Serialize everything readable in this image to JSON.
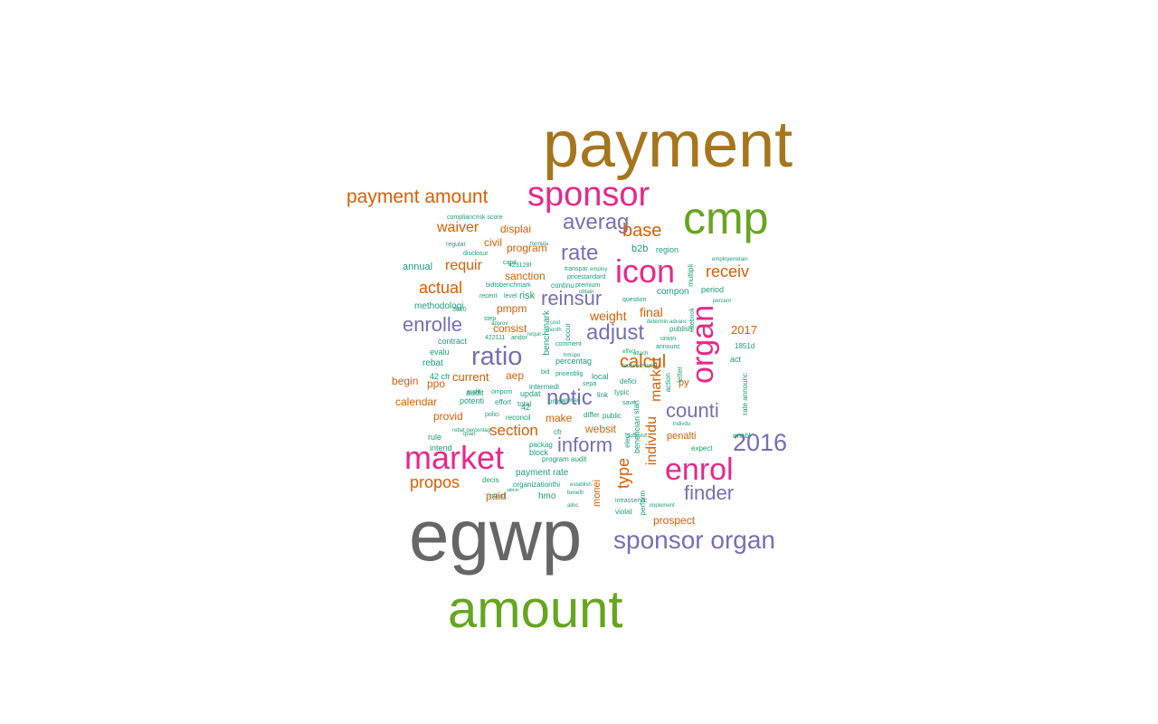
{
  "palette": {
    "gold": "#A6761D",
    "grey": "#666666",
    "green": "#66A61E",
    "pink": "#E7298A",
    "purple": "#7570B3",
    "orange": "#D95F02",
    "teal": "#1B9E77"
  },
  "words": [
    {
      "text": "payment",
      "color": "gold"
    },
    {
      "text": "egwp",
      "color": "grey"
    },
    {
      "text": "amount",
      "color": "green"
    },
    {
      "text": "cmp",
      "color": "green"
    },
    {
      "text": "sponsor",
      "color": "pink"
    },
    {
      "text": "icon",
      "color": "pink"
    },
    {
      "text": "organ",
      "color": "pink"
    },
    {
      "text": "market",
      "color": "pink"
    },
    {
      "text": "enrol",
      "color": "pink"
    },
    {
      "text": "payment amount",
      "color": "orange"
    },
    {
      "text": "sponsor organ",
      "color": "purple"
    },
    {
      "text": "2016",
      "color": "purple"
    },
    {
      "text": "ratio",
      "color": "purple"
    },
    {
      "text": "averag",
      "color": "purple"
    },
    {
      "text": "rate",
      "color": "purple"
    },
    {
      "text": "adjust",
      "color": "purple"
    },
    {
      "text": "notic",
      "color": "purple"
    },
    {
      "text": "inform",
      "color": "purple"
    },
    {
      "text": "counti",
      "color": "purple"
    },
    {
      "text": "finder",
      "color": "purple"
    },
    {
      "text": "enrolle",
      "color": "purple"
    },
    {
      "text": "reinsur",
      "color": "purple"
    },
    {
      "text": "base",
      "color": "orange"
    },
    {
      "text": "receiv",
      "color": "orange"
    },
    {
      "text": "waiver",
      "color": "orange"
    },
    {
      "text": "requir",
      "color": "orange"
    },
    {
      "text": "actual",
      "color": "orange"
    },
    {
      "text": "calcul",
      "color": "orange"
    },
    {
      "text": "section",
      "color": "orange"
    },
    {
      "text": "propos",
      "color": "orange"
    },
    {
      "text": "type",
      "color": "orange"
    },
    {
      "text": "individu",
      "color": "orange"
    },
    {
      "text": "market",
      "color": "orange"
    },
    {
      "text": "weight",
      "color": "orange"
    },
    {
      "text": "final",
      "color": "orange"
    },
    {
      "text": "2017",
      "color": "orange"
    },
    {
      "text": "pmpm",
      "color": "orange"
    },
    {
      "text": "consist",
      "color": "orange"
    },
    {
      "text": "program",
      "color": "orange"
    },
    {
      "text": "sanction",
      "color": "orange"
    },
    {
      "text": "civil",
      "color": "orange"
    },
    {
      "text": "displai",
      "color": "orange"
    },
    {
      "text": "current",
      "color": "orange"
    },
    {
      "text": "aep",
      "color": "orange"
    },
    {
      "text": "ppo",
      "color": "orange"
    },
    {
      "text": "begin",
      "color": "orange"
    },
    {
      "text": "calendar",
      "color": "orange"
    },
    {
      "text": "provid",
      "color": "orange"
    },
    {
      "text": "make",
      "color": "orange"
    },
    {
      "text": "websit",
      "color": "orange"
    },
    {
      "text": "paid",
      "color": "orange"
    },
    {
      "text": "penalti",
      "color": "orange"
    },
    {
      "text": "prospect",
      "color": "orange"
    },
    {
      "text": "monei",
      "color": "orange"
    },
    {
      "text": "py",
      "color": "orange"
    },
    {
      "text": "risk",
      "color": "teal"
    },
    {
      "text": "hmo",
      "color": "teal"
    },
    {
      "text": "payment rate",
      "color": "teal"
    },
    {
      "text": "b2b",
      "color": "teal"
    },
    {
      "text": "region",
      "color": "teal"
    },
    {
      "text": "compon",
      "color": "teal"
    },
    {
      "text": "period",
      "color": "teal"
    },
    {
      "text": "annual",
      "color": "teal"
    },
    {
      "text": "methodologi",
      "color": "teal"
    },
    {
      "text": "rebat",
      "color": "teal"
    },
    {
      "text": "evalu",
      "color": "teal"
    },
    {
      "text": "contract",
      "color": "teal"
    },
    {
      "text": "audit",
      "color": "teal"
    },
    {
      "text": "potenti",
      "color": "teal"
    },
    {
      "text": "rule",
      "color": "teal"
    },
    {
      "text": "intend",
      "color": "teal"
    },
    {
      "text": "block",
      "color": "teal"
    },
    {
      "text": "packag",
      "color": "teal"
    },
    {
      "text": "cfr",
      "color": "teal"
    },
    {
      "text": "42",
      "color": "teal"
    },
    {
      "text": "42 cfr",
      "color": "teal"
    },
    {
      "text": "reconcil",
      "color": "teal"
    },
    {
      "text": "updat",
      "color": "teal"
    },
    {
      "text": "total",
      "color": "teal"
    },
    {
      "text": "effort",
      "color": "teal"
    },
    {
      "text": "intermedi",
      "color": "teal"
    },
    {
      "text": "percentag",
      "color": "teal"
    },
    {
      "text": "benchmark",
      "color": "teal"
    },
    {
      "text": "local",
      "color": "teal"
    },
    {
      "text": "defici",
      "color": "teal"
    },
    {
      "text": "link",
      "color": "teal"
    },
    {
      "text": "typic",
      "color": "teal"
    },
    {
      "text": "public",
      "color": "teal"
    },
    {
      "text": "differ",
      "color": "teal"
    },
    {
      "text": "beneficiari",
      "color": "teal"
    },
    {
      "text": "perform",
      "color": "teal"
    },
    {
      "text": "violat",
      "color": "teal"
    },
    {
      "text": "expect",
      "color": "teal"
    },
    {
      "text": "enabl",
      "color": "teal"
    },
    {
      "text": "letter",
      "color": "teal"
    },
    {
      "text": "action",
      "color": "teal"
    },
    {
      "text": "act",
      "color": "teal"
    },
    {
      "text": "1851d",
      "color": "teal"
    },
    {
      "text": "rate announc",
      "color": "teal"
    },
    {
      "text": "publish",
      "color": "teal"
    },
    {
      "text": "announc",
      "color": "teal"
    },
    {
      "text": "union",
      "color": "teal"
    },
    {
      "text": "multipli",
      "color": "teal"
    },
    {
      "text": "ratebook",
      "color": "teal"
    },
    {
      "text": "program audit",
      "color": "teal"
    },
    {
      "text": "organizationthi",
      "color": "teal"
    },
    {
      "text": "decis",
      "color": "teal"
    },
    {
      "text": "includ",
      "color": "teal"
    },
    {
      "text": "omss",
      "color": "teal"
    },
    {
      "text": "save",
      "color": "teal"
    },
    {
      "text": "start",
      "color": "teal"
    },
    {
      "text": "elect",
      "color": "teal"
    },
    {
      "text": "sepa",
      "color": "teal"
    },
    {
      "text": "compliancrisk score",
      "color": "teal"
    },
    {
      "text": "regular",
      "color": "teal"
    },
    {
      "text": "disclosur",
      "color": "teal"
    },
    {
      "text": "capit",
      "color": "teal"
    },
    {
      "text": "423128f",
      "color": "teal"
    },
    {
      "text": "transpar",
      "color": "teal"
    },
    {
      "text": "continu",
      "color": "teal"
    },
    {
      "text": "premium",
      "color": "teal"
    },
    {
      "text": "recent",
      "color": "teal"
    },
    {
      "text": "level",
      "color": "teal"
    },
    {
      "text": "bidtobenchmark",
      "color": "teal"
    },
    {
      "text": "3610",
      "color": "teal"
    },
    {
      "text": "step",
      "color": "teal"
    },
    {
      "text": "422111",
      "color": "teal"
    },
    {
      "text": "andor",
      "color": "teal"
    },
    {
      "text": "occur",
      "color": "teal"
    },
    {
      "text": "comment",
      "color": "teal"
    },
    {
      "text": "bid",
      "color": "teal"
    },
    {
      "text": "pricestandard",
      "color": "teal"
    },
    {
      "text": "question",
      "color": "teal"
    },
    {
      "text": "employ",
      "color": "teal"
    },
    {
      "text": "formula",
      "color": "teal"
    },
    {
      "text": "ompom",
      "color": "teal"
    },
    {
      "text": "polici",
      "color": "teal"
    },
    {
      "text": "audit",
      "color": "teal"
    },
    {
      "text": "prioeoblig",
      "color": "teal"
    },
    {
      "text": "intrasservic",
      "color": "teal"
    },
    {
      "text": "implement",
      "color": "teal"
    },
    {
      "text": "determin",
      "color": "teal"
    },
    {
      "text": "advanc",
      "color": "teal"
    },
    {
      "text": "indivdu",
      "color": "teal"
    },
    {
      "text": "submiss",
      "color": "teal"
    },
    {
      "text": "establish",
      "color": "teal"
    },
    {
      "text": "employerretain",
      "color": "teal"
    },
    {
      "text": "percent",
      "color": "teal"
    },
    {
      "text": "summari",
      "color": "teal"
    },
    {
      "text": "effect",
      "color": "teal"
    },
    {
      "text": "benefit",
      "color": "teal"
    },
    {
      "text": "alloc",
      "color": "teal"
    },
    {
      "text": "approv",
      "color": "teal"
    },
    {
      "text": "rebat percentag",
      "color": "teal"
    },
    {
      "text": "quart",
      "color": "teal"
    },
    {
      "text": "month",
      "color": "teal"
    },
    {
      "text": "admin",
      "color": "teal"
    },
    {
      "text": "hmopo",
      "color": "teal"
    },
    {
      "text": "cost",
      "color": "teal"
    },
    {
      "text": "requir",
      "color": "teal"
    },
    {
      "text": "fedbenchmark",
      "color": "teal"
    },
    {
      "text": "obtain",
      "color": "teal"
    },
    {
      "text": "attach",
      "color": "teal"
    }
  ]
}
